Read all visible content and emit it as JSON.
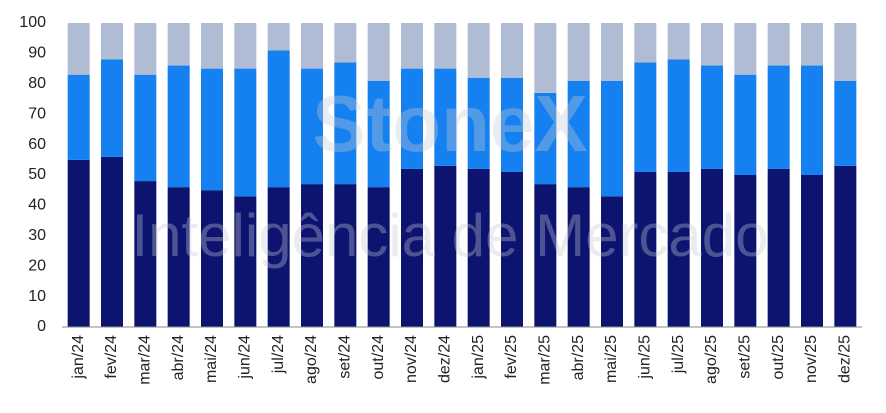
{
  "chart_data": {
    "type": "stacked_bar",
    "categories": [
      "jan/24",
      "fev/24",
      "mar/24",
      "abr/24",
      "mai/24",
      "jun/24",
      "jul/24",
      "ago/24",
      "set/24",
      "out/24",
      "nov/24",
      "dez/24",
      "jan/25",
      "fev/25",
      "mar/25",
      "abr/25",
      "mai/25",
      "jun/25",
      "jul/25",
      "ago/25",
      "set/25",
      "out/25",
      "nov/25",
      "dez/25"
    ],
    "series": [
      {
        "color": "#0d1470",
        "values": [
          55,
          56,
          48,
          46,
          45,
          43,
          46,
          47,
          47,
          46,
          52,
          53,
          52,
          51,
          47,
          46,
          43,
          51,
          51,
          52,
          50,
          52,
          50,
          53
        ]
      },
      {
        "color": "#1580f0",
        "values": [
          28,
          32,
          35,
          40,
          40,
          42,
          45,
          38,
          40,
          35,
          33,
          32,
          30,
          31,
          30,
          35,
          38,
          36,
          37,
          34,
          33,
          34,
          36,
          28
        ]
      },
      {
        "color": "#b0bcd4",
        "values": [
          17,
          12,
          17,
          14,
          15,
          15,
          9,
          15,
          13,
          19,
          15,
          15,
          18,
          18,
          23,
          19,
          19,
          13,
          12,
          14,
          17,
          14,
          14,
          19
        ]
      }
    ],
    "ylim": [
      0,
      100
    ],
    "yticks": [
      0,
      10,
      20,
      30,
      40,
      50,
      60,
      70,
      80,
      90,
      100
    ],
    "grid": false,
    "watermark": [
      "StoneX",
      "Inteligência de Mercado"
    ]
  }
}
